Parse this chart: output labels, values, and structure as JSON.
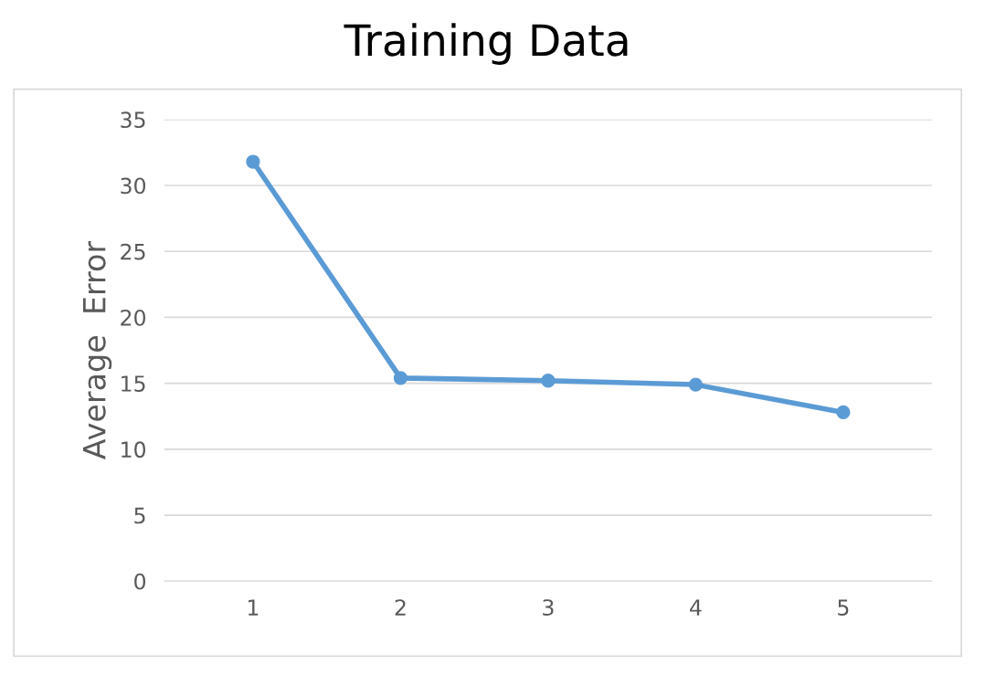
{
  "chart_data": {
    "type": "line",
    "title": "Training Data",
    "ylabel": "Average  Error",
    "categories": [
      "1",
      "2",
      "3",
      "4",
      "5"
    ],
    "series": [
      {
        "color": "#5b9bd5",
        "values": [
          31.8,
          15.4,
          15.2,
          14.9,
          12.8
        ]
      }
    ],
    "ylim": [
      0,
      35
    ],
    "yticks": [
      0,
      5,
      10,
      15,
      20,
      25,
      30,
      35
    ],
    "grid": "y",
    "marker": "circle",
    "line_style": "solid",
    "legend": false
  }
}
